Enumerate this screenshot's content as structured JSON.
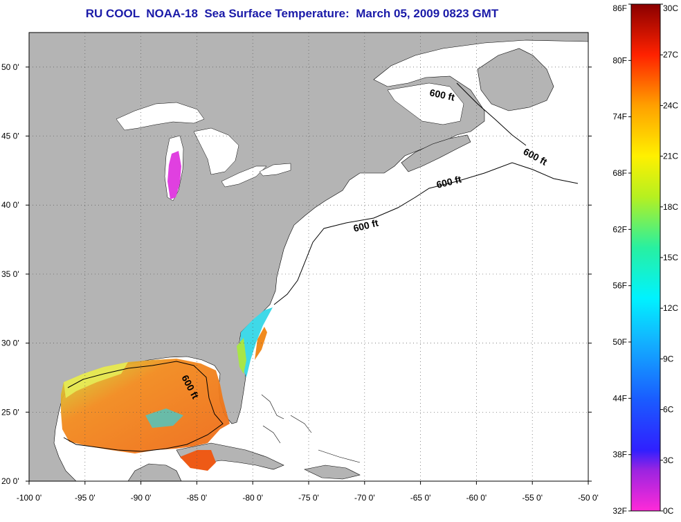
{
  "title": "RU COOL  NOAA-18  Sea Surface Temperature:  March 05, 2009 0823 GMT",
  "map": {
    "lon_range": [
      -100,
      -50
    ],
    "lat_range": [
      20,
      52.5
    ],
    "lon_labels": [
      "-100 0'",
      "-95 0'",
      "-90 0'",
      "-85 0'",
      "-80 0'",
      "-75 0'",
      "-70 0'",
      "-65 0'",
      "-60 0'",
      "-55 0'",
      "-50 0'"
    ],
    "lat_labels": [
      "20 0'",
      "25 0'",
      "30 0'",
      "35 0'",
      "40 0'",
      "45 0'",
      "50 0'"
    ],
    "contour_labels": [
      "600 ft",
      "600 ft",
      "600 ft",
      "600 ft",
      "600 ft"
    ],
    "colors": {
      "land": "#b4b4b4",
      "ocean": "#ffffff",
      "warm": "#f07a1e",
      "cool": "#2fd3e0",
      "lake_anomaly": "#e040e0"
    }
  },
  "colorbar": {
    "fahrenheit_labels": [
      "32F",
      "38F",
      "44F",
      "50F",
      "56F",
      "62F",
      "68F",
      "74F",
      "80F",
      "86F"
    ],
    "celsius_labels": [
      "0C",
      "3C",
      "6C",
      "9C",
      "12C",
      "15C",
      "18C",
      "21C",
      "24C",
      "27C",
      "30C"
    ],
    "range_c": [
      0,
      30
    ],
    "range_f": [
      32,
      86
    ]
  }
}
